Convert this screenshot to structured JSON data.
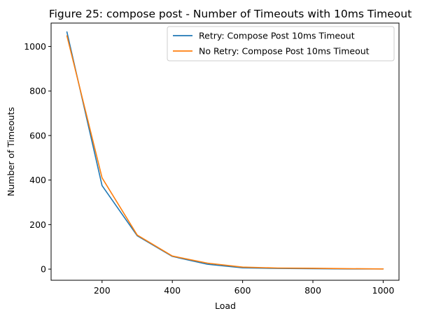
{
  "chart_data": {
    "type": "line",
    "title": "Figure 25: compose post - Number of Timeouts with 10ms Timeout",
    "xlabel": "Load",
    "ylabel": "Number of Timeouts",
    "xlim": [
      55,
      1045
    ],
    "ylim": [
      -50,
      1105
    ],
    "x_ticks": [
      {
        "value": 200,
        "label": "200"
      },
      {
        "value": 400,
        "label": "400"
      },
      {
        "value": 600,
        "label": "600"
      },
      {
        "value": 800,
        "label": "800"
      },
      {
        "value": 1000,
        "label": "1000"
      }
    ],
    "y_ticks": [
      {
        "value": 0,
        "label": "0"
      },
      {
        "value": 200,
        "label": "200"
      },
      {
        "value": 400,
        "label": "400"
      },
      {
        "value": 600,
        "label": "600"
      },
      {
        "value": 800,
        "label": "800"
      },
      {
        "value": 1000,
        "label": "1000"
      }
    ],
    "grid": false,
    "legend_position": "top-right",
    "x": [
      100,
      200,
      300,
      400,
      500,
      600,
      700,
      800,
      900,
      1000
    ],
    "series": [
      {
        "name": "Retry: Compose Post 10ms Timeout",
        "color": "#1f77b4",
        "values": [
          1065,
          375,
          150,
          57,
          22,
          6,
          3,
          2,
          1,
          1
        ]
      },
      {
        "name": "No Retry: Compose Post 10ms Timeout",
        "color": "#ff7f0e",
        "values": [
          1048,
          410,
          153,
          59,
          27,
          9,
          5,
          4,
          2,
          1
        ]
      }
    ]
  }
}
